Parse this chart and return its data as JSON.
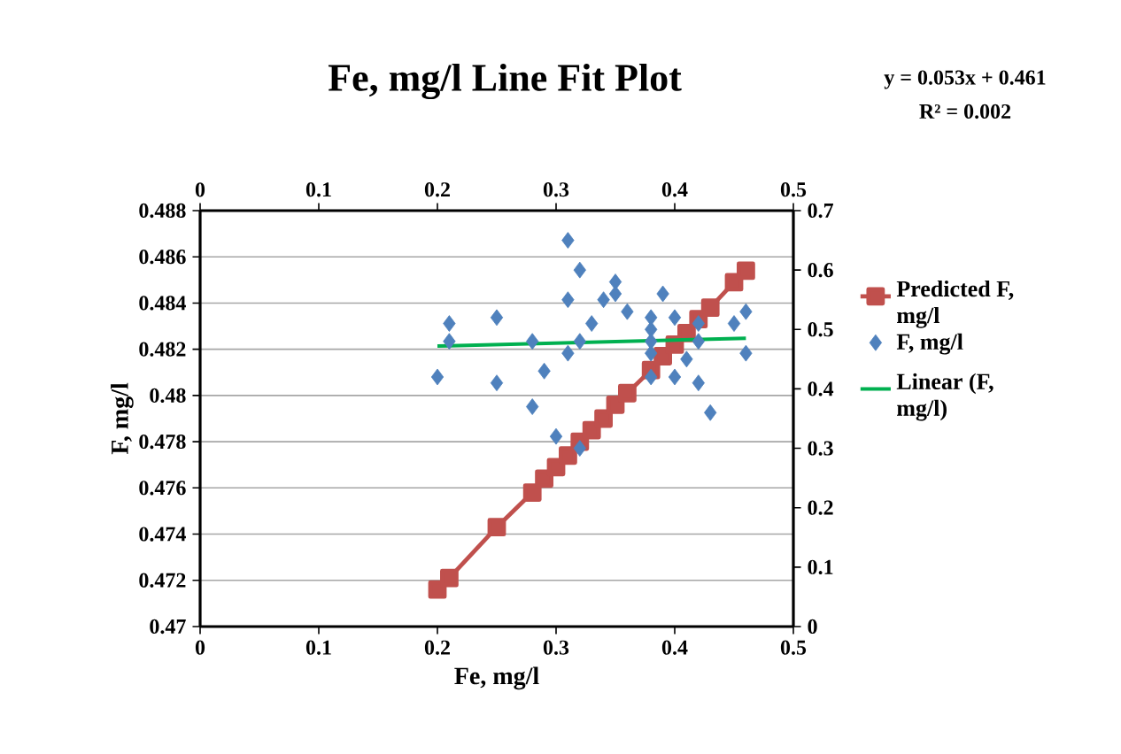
{
  "chart_data": {
    "type": "scatter",
    "title": "Fe,   mg/l Line Fit  Plot",
    "xlabel": "Fe,   mg/l",
    "ylabel": "F,   mg/l",
    "annotations": [
      "y = 0.053x + 0.461",
      "R² = 0.002"
    ],
    "xlim": [
      0,
      0.5
    ],
    "xticks": [
      0,
      0.1,
      0.2,
      0.3,
      0.4,
      0.5
    ],
    "x2lim": [
      0,
      0.5
    ],
    "x2ticks": [
      0,
      0.1,
      0.2,
      0.3,
      0.4,
      0.5
    ],
    "ylim": [
      0.47,
      0.488
    ],
    "yticks": [
      0.47,
      0.472,
      0.474,
      0.476,
      0.478,
      0.48,
      0.482,
      0.484,
      0.486,
      0.488
    ],
    "y2lim": [
      0,
      0.7
    ],
    "y2ticks": [
      0,
      0.1,
      0.2,
      0.3,
      0.4,
      0.5,
      0.6,
      0.7
    ],
    "grid": "y",
    "legend": "right",
    "series": [
      {
        "name": "Predicted F,   mg/l",
        "type": "line",
        "marker": "square",
        "line_style": "solid",
        "color": "#c0504d",
        "x": [
          0.2,
          0.21,
          0.25,
          0.28,
          0.29,
          0.3,
          0.31,
          0.32,
          0.33,
          0.34,
          0.35,
          0.36,
          0.38,
          0.39,
          0.4,
          0.41,
          0.42,
          0.43,
          0.45,
          0.46
        ],
        "values": [
          0.4716,
          0.4721,
          0.4743,
          0.4758,
          0.4764,
          0.4769,
          0.4774,
          0.478,
          0.4785,
          0.479,
          0.4796,
          0.4801,
          0.4811,
          0.4817,
          0.4822,
          0.4827,
          0.4833,
          0.4838,
          0.4849,
          0.4854
        ]
      },
      {
        "name": "F,   mg/l",
        "marker": "diamond",
        "axis": "y2",
        "color": "#4f81bd",
        "x": [
          0.2,
          0.21,
          0.21,
          0.25,
          0.25,
          0.28,
          0.28,
          0.29,
          0.3,
          0.31,
          0.31,
          0.31,
          0.32,
          0.32,
          0.32,
          0.33,
          0.34,
          0.35,
          0.35,
          0.36,
          0.38,
          0.38,
          0.38,
          0.38,
          0.38,
          0.39,
          0.4,
          0.4,
          0.41,
          0.42,
          0.42,
          0.42,
          0.43,
          0.45,
          0.46,
          0.46
        ],
        "values": [
          0.42,
          0.51,
          0.48,
          0.52,
          0.41,
          0.48,
          0.37,
          0.43,
          0.32,
          0.65,
          0.55,
          0.46,
          0.6,
          0.48,
          0.3,
          0.51,
          0.55,
          0.58,
          0.56,
          0.53,
          0.52,
          0.5,
          0.48,
          0.46,
          0.42,
          0.56,
          0.52,
          0.42,
          0.45,
          0.51,
          0.48,
          0.41,
          0.36,
          0.51,
          0.53,
          0.46
        ]
      },
      {
        "name": "Linear (F,   mg/l)",
        "type": "line",
        "marker": "none",
        "line_style": "solid",
        "axis": "y2",
        "color": "#00b050",
        "x": [
          0.2,
          0.46
        ],
        "values": [
          0.472,
          0.485
        ]
      }
    ]
  }
}
